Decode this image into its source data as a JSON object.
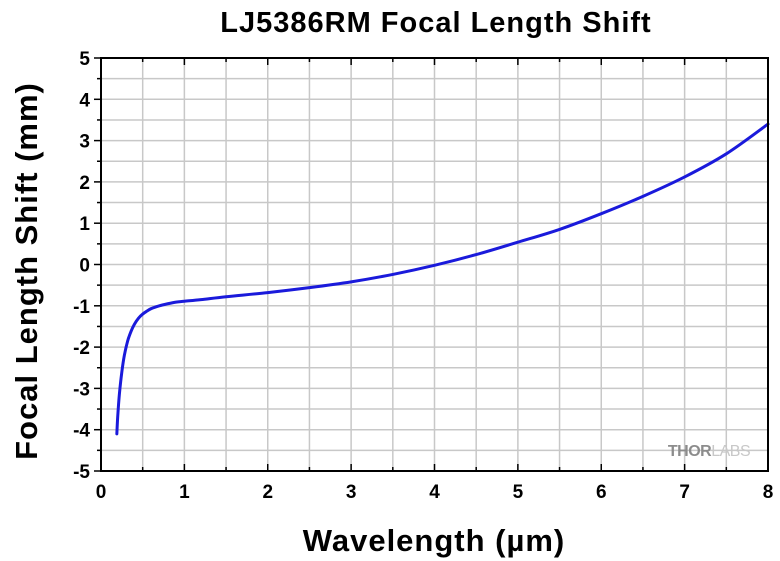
{
  "chart_data": {
    "type": "line",
    "title": "LJ5386RM Focal Length Shift",
    "xlabel": "Wavelength (µm)",
    "ylabel": "Focal Length Shift (mm)",
    "xlim": [
      0,
      8
    ],
    "ylim": [
      -5,
      5
    ],
    "xticks": [
      "0",
      "1",
      "2",
      "3",
      "4",
      "5",
      "6",
      "7",
      "8"
    ],
    "yticks": [
      "5",
      "4",
      "3",
      "2",
      "1",
      "0",
      "-1",
      "-2",
      "-3",
      "-4",
      "-5"
    ],
    "grid": true,
    "series": [
      {
        "color": "#1a1adb",
        "x": [
          0.19,
          0.2,
          0.22,
          0.25,
          0.28,
          0.32,
          0.36,
          0.4,
          0.45,
          0.5,
          0.55,
          0.6,
          0.7,
          0.8,
          0.9,
          1.0,
          1.2,
          1.5,
          2.0,
          2.5,
          3.0,
          3.5,
          4.0,
          4.5,
          5.0,
          5.5,
          6.0,
          6.5,
          7.0,
          7.5,
          8.0
        ],
        "y": [
          -4.1,
          -3.7,
          -3.15,
          -2.6,
          -2.2,
          -1.85,
          -1.62,
          -1.45,
          -1.3,
          -1.2,
          -1.13,
          -1.07,
          -1.0,
          -0.95,
          -0.91,
          -0.89,
          -0.85,
          -0.78,
          -0.68,
          -0.56,
          -0.42,
          -0.24,
          -0.02,
          0.24,
          0.54,
          0.85,
          1.23,
          1.65,
          2.12,
          2.68,
          3.4
        ]
      }
    ]
  },
  "brand": {
    "text_dark": "THOR",
    "text_light": "LABS"
  }
}
